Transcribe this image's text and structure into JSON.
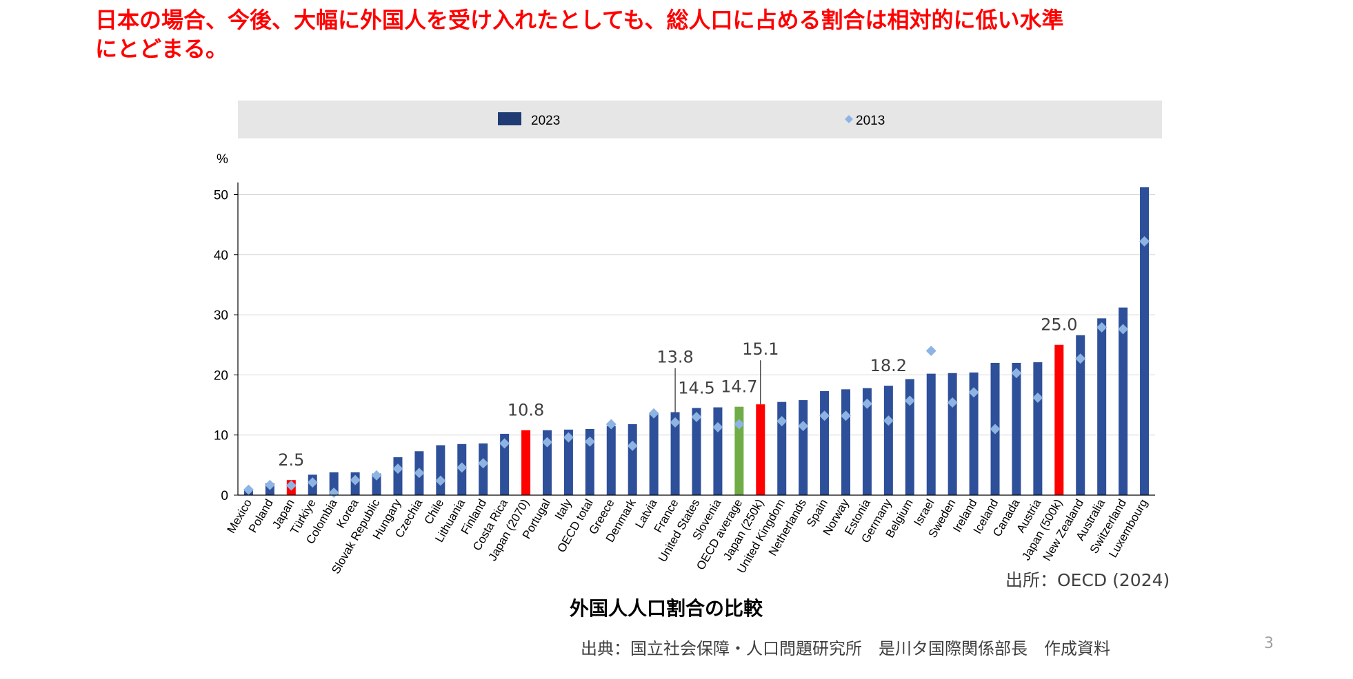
{
  "slide": {
    "headline_line1": "日本の場合、今後、大幅に外国人を受け入れたとしても、総人口に占める割合は相対的に低い水準",
    "headline_line2": "にとどまる。",
    "source_note": "出所：OECD (2024)",
    "caption": "外国人人口割合の比較",
    "credit": "出典：国立社会保障・人口問題研究所　是川タ国際関係部長　作成資料",
    "page_number": "3"
  },
  "colors": {
    "bar_default": "#2e4f99",
    "bar_japan": "#ff0000",
    "bar_oecd_average": "#70ad47",
    "marker_2013": "#8eb4e3",
    "legend_bar": "#1f3b73",
    "legend_bg": "#e6e6e6",
    "headline": "#ff0000"
  },
  "chart_data": {
    "type": "bar",
    "title": "",
    "xlabel": "",
    "ylabel": "%",
    "ylim": [
      0,
      52
    ],
    "yticks": [
      0,
      10,
      20,
      30,
      40,
      50
    ],
    "grid": true,
    "legend_position": "top",
    "categories": [
      "Mexico",
      "Poland",
      "Japan",
      "Türkiye",
      "Colombia",
      "Korea",
      "Slovak Republic",
      "Hungary",
      "Czechia",
      "Chile",
      "Lithuania",
      "Finland",
      "Costa Rica",
      "Japan (2070)",
      "Portugal",
      "Italy",
      "OECD total",
      "Greece",
      "Denmark",
      "Latvia",
      "France",
      "United States",
      "Slovenia",
      "OECD average",
      "Japan (250k)",
      "United Kingdom",
      "Netherlands",
      "Spain",
      "Norway",
      "Estonia",
      "Germany",
      "Belgium",
      "Israel",
      "Sweden",
      "Ireland",
      "Iceland",
      "Canada",
      "Austria",
      "Japan (500k)",
      "New Zealand",
      "Australia",
      "Switzerland",
      "Luxembourg"
    ],
    "series": [
      {
        "name": "2023",
        "type": "bar",
        "values": [
          0.9,
          2.0,
          2.5,
          3.4,
          3.8,
          3.8,
          3.6,
          6.3,
          7.3,
          8.3,
          8.5,
          8.6,
          10.2,
          10.8,
          10.8,
          10.9,
          11.0,
          11.5,
          11.8,
          13.7,
          13.8,
          14.5,
          14.6,
          14.7,
          15.1,
          15.5,
          15.8,
          17.3,
          17.6,
          17.8,
          18.2,
          19.3,
          20.2,
          20.3,
          20.4,
          22.0,
          22.0,
          22.1,
          25.0,
          26.6,
          29.4,
          31.2,
          51.2
        ]
      },
      {
        "name": "2013",
        "type": "marker",
        "values": [
          0.9,
          1.7,
          1.6,
          2.1,
          0.4,
          2.5,
          3.3,
          4.4,
          3.7,
          2.4,
          4.6,
          5.3,
          8.6,
          null,
          8.8,
          9.6,
          8.9,
          11.8,
          8.2,
          13.6,
          12.1,
          13.0,
          11.3,
          11.8,
          null,
          12.3,
          11.5,
          13.2,
          13.2,
          15.2,
          12.4,
          15.7,
          24.0,
          15.4,
          17.1,
          11.0,
          20.3,
          16.2,
          null,
          22.7,
          27.9,
          27.6,
          42.2
        ]
      }
    ],
    "highlight": {
      "Japan": "japan",
      "Japan (2070)": "japan",
      "Japan (250k)": "japan",
      "Japan (500k)": "japan",
      "OECD average": "oecd_average"
    },
    "data_labels": [
      {
        "category": "Japan",
        "text": "2.5"
      },
      {
        "category": "Japan (2070)",
        "text": "10.8"
      },
      {
        "category": "France",
        "text": "13.8",
        "leader": true
      },
      {
        "category": "United States",
        "text": "14.5"
      },
      {
        "category": "OECD average",
        "text": "14.7"
      },
      {
        "category": "Japan (250k)",
        "text": "15.1",
        "leader": true
      },
      {
        "category": "Germany",
        "text": "18.2"
      },
      {
        "category": "Japan (500k)",
        "text": "25.0"
      }
    ]
  }
}
